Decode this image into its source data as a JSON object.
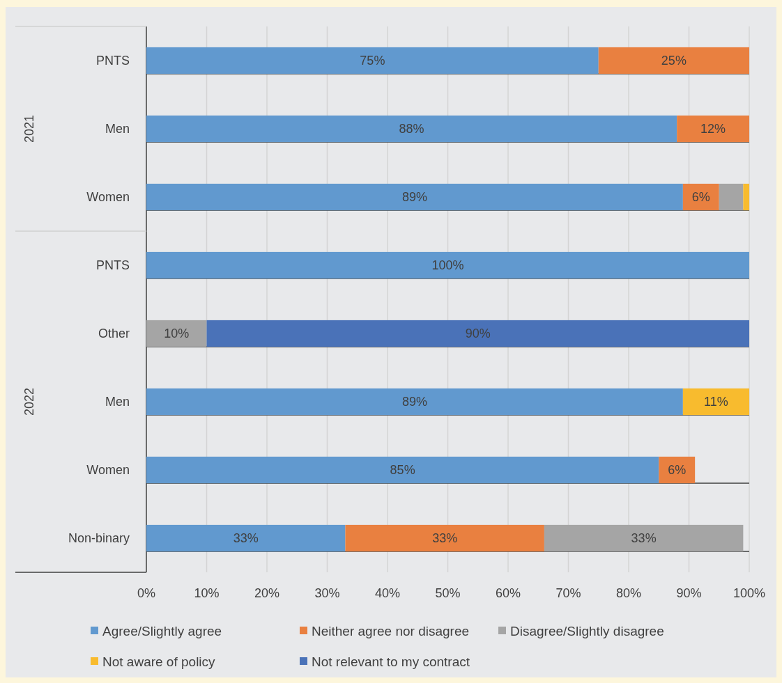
{
  "chart_data": {
    "type": "bar",
    "orientation": "horizontal",
    "stacked": true,
    "categories": [
      "PNTS",
      "Men",
      "Women",
      "PNTS",
      "Other",
      "Men",
      "Women",
      "Non-binary"
    ],
    "series": [
      {
        "name": "Agree/Slightly agree",
        "color": "#6199cf",
        "values": [
          75,
          88,
          89,
          100,
          null,
          89,
          85,
          33
        ],
        "value_labels": [
          "75%",
          "88%",
          "89%",
          "100%",
          null,
          "89%",
          "85%",
          "33%"
        ]
      },
      {
        "name": "Neither agree nor disagree",
        "color": "#e98040",
        "values": [
          25,
          12,
          6,
          null,
          null,
          null,
          6,
          33
        ],
        "value_labels": [
          "25%",
          "12%",
          "6%",
          null,
          null,
          null,
          "6%",
          "33%"
        ]
      },
      {
        "name": "Disagree/Slightly disagree",
        "color": "#a5a5a5",
        "values": [
          null,
          null,
          4,
          null,
          10,
          null,
          null,
          33
        ],
        "value_labels": [
          null,
          null,
          null,
          null,
          "10%",
          null,
          null,
          "33%"
        ]
      },
      {
        "name": "Not aware of policy",
        "color": "#f8bb2e",
        "values": [
          null,
          null,
          1,
          null,
          null,
          11,
          null,
          null
        ],
        "value_labels": [
          null,
          null,
          null,
          null,
          null,
          "11%",
          null,
          null
        ]
      },
      {
        "name": "Not relevant to my contract",
        "color": "#4a72b8",
        "values": [
          null,
          null,
          null,
          null,
          90,
          null,
          null,
          null
        ],
        "value_labels": [
          null,
          null,
          null,
          null,
          "90%",
          null,
          null,
          null
        ]
      }
    ],
    "xlim": [
      0,
      100
    ],
    "xticks": [
      {
        "value": 0,
        "label": "0%"
      },
      {
        "value": 10,
        "label": "10%"
      },
      {
        "value": 20,
        "label": "20%"
      },
      {
        "value": 30,
        "label": "30%"
      },
      {
        "value": 40,
        "label": "40%"
      },
      {
        "value": 50,
        "label": "50%"
      },
      {
        "value": 60,
        "label": "60%"
      },
      {
        "value": 70,
        "label": "70%"
      },
      {
        "value": 80,
        "label": "80%"
      },
      {
        "value": 90,
        "label": "90%"
      },
      {
        "value": 100,
        "label": "100%"
      }
    ],
    "annotations": [
      "2021",
      "2022"
    ],
    "grid": "x",
    "legend": "bottom"
  }
}
